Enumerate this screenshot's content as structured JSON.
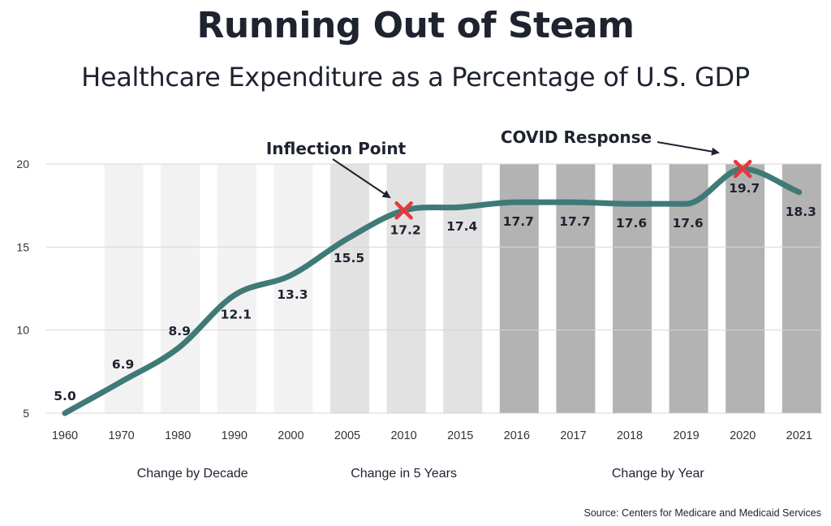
{
  "title": "Running Out of Steam",
  "subtitle": "Healthcare Expenditure as a Percentage of U.S. GDP",
  "source": "Source: Centers for Medicare and Medicaid Services",
  "colors": {
    "line": "#3f7a77",
    "marker": "#e8383d",
    "text": "#1f2330",
    "band_decade": "#f2f2f2",
    "band_five_year": "#e2e2e2",
    "band_year": "#b3b3b3",
    "grid": "#d6d6d6"
  },
  "chart_data": {
    "type": "line",
    "categories": [
      "1960",
      "1970",
      "1980",
      "1990",
      "2000",
      "2005",
      "2010",
      "2015",
      "2016",
      "2017",
      "2018",
      "2019",
      "2020",
      "2021"
    ],
    "values": [
      5.0,
      6.9,
      8.9,
      12.1,
      13.3,
      15.5,
      17.2,
      17.4,
      17.7,
      17.7,
      17.6,
      17.6,
      19.7,
      18.3
    ],
    "data_labels": [
      "5.0",
      "6.9",
      "8.9",
      "12.1",
      "13.3",
      "15.5",
      "17.2",
      "17.4",
      "17.7",
      "17.7",
      "17.6",
      "17.6",
      "19.7",
      "18.3"
    ],
    "ylim": [
      5,
      20
    ],
    "yticks": [
      5,
      10,
      15,
      20
    ],
    "grid": true,
    "period_groups": [
      {
        "label": "Change by Decade",
        "shade": "band_decade"
      },
      {
        "label": "Change in 5 Years",
        "shade": "band_five_year"
      },
      {
        "label": "Change by Year",
        "shade": "band_year"
      }
    ],
    "annotations": [
      {
        "text": "Inflection Point",
        "category": "2010",
        "marker": "X"
      },
      {
        "text": "COVID Response",
        "category": "2020",
        "marker": "X"
      }
    ]
  }
}
